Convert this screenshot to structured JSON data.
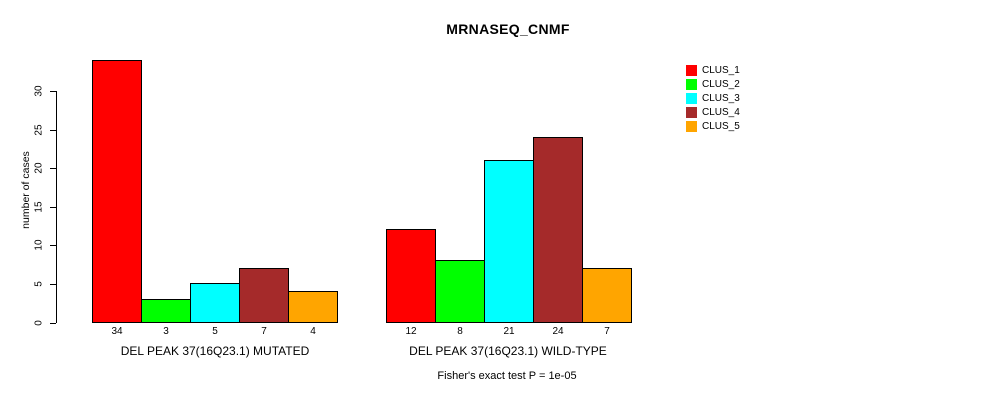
{
  "chart_data": {
    "type": "bar",
    "title": "MRNASEQ_CNMF",
    "ylabel": "number of cases",
    "xlabel": "",
    "ylim": [
      0,
      34
    ],
    "yticks": [
      0,
      5,
      10,
      15,
      20,
      25,
      30
    ],
    "grid": false,
    "legend_position": "right-outside",
    "categories": [
      "CLUS_1",
      "CLUS_2",
      "CLUS_3",
      "CLUS_4",
      "CLUS_5"
    ],
    "series_colors": [
      "#FF0000",
      "#00FF00",
      "#00FFFF",
      "#A52A2A",
      "#FFA500"
    ],
    "groups": [
      {
        "label": "DEL PEAK 37(16Q23.1) MUTATED",
        "values": [
          34,
          3,
          5,
          7,
          4
        ]
      },
      {
        "label": "DEL PEAK 37(16Q23.1) WILD-TYPE",
        "values": [
          12,
          8,
          21,
          24,
          7
        ]
      }
    ],
    "annotation": "Fisher's exact test P = 1e-05"
  }
}
